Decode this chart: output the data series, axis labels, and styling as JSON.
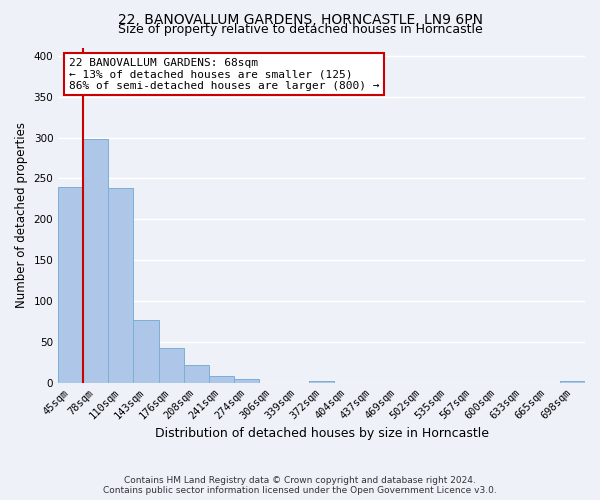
{
  "title": "22, BANOVALLUM GARDENS, HORNCASTLE, LN9 6PN",
  "subtitle": "Size of property relative to detached houses in Horncastle",
  "xlabel": "Distribution of detached houses by size in Horncastle",
  "ylabel": "Number of detached properties",
  "bar_labels": [
    "45sqm",
    "78sqm",
    "110sqm",
    "143sqm",
    "176sqm",
    "208sqm",
    "241sqm",
    "274sqm",
    "306sqm",
    "339sqm",
    "372sqm",
    "404sqm",
    "437sqm",
    "469sqm",
    "502sqm",
    "535sqm",
    "567sqm",
    "600sqm",
    "633sqm",
    "665sqm",
    "698sqm"
  ],
  "bar_heights": [
    240,
    298,
    238,
    77,
    43,
    22,
    9,
    5,
    0,
    0,
    2,
    0,
    0,
    0,
    0,
    0,
    0,
    0,
    0,
    0,
    3
  ],
  "bar_color": "#aec6e8",
  "bar_edge_color": "#7bafd4",
  "ylim": [
    0,
    410
  ],
  "yticks": [
    0,
    50,
    100,
    150,
    200,
    250,
    300,
    350,
    400
  ],
  "vline_color": "#cc0000",
  "annotation_title": "22 BANOVALLUM GARDENS: 68sqm",
  "annotation_line1": "← 13% of detached houses are smaller (125)",
  "annotation_line2": "86% of semi-detached houses are larger (800) →",
  "annotation_box_color": "#cc0000",
  "footer1": "Contains HM Land Registry data © Crown copyright and database right 2024.",
  "footer2": "Contains public sector information licensed under the Open Government Licence v3.0.",
  "background_color": "#eef2f8",
  "grid_color": "#ffffff",
  "title_fontsize": 10,
  "subtitle_fontsize": 9,
  "ylabel_fontsize": 8.5,
  "xlabel_fontsize": 9,
  "tick_fontsize": 7.5,
  "footer_fontsize": 6.5,
  "ann_fontsize": 8
}
